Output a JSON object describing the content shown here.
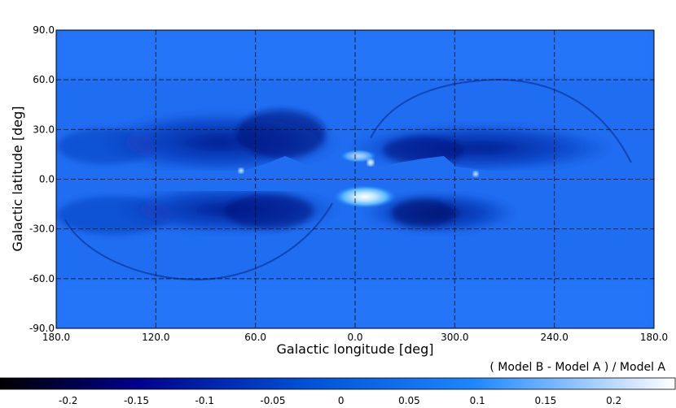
{
  "chart_data": {
    "type": "heatmap",
    "projection": "plate-carree",
    "xlabel": "Galactic longitude [deg]",
    "ylabel": "Galactic latitude [deg]",
    "x_ticks": [
      "180.0",
      "120.0",
      "60.0",
      "0.0",
      "300.0",
      "240.0",
      "180.0"
    ],
    "y_ticks": [
      "90.0",
      "60.0",
      "30.0",
      "0.0",
      "-30.0",
      "-60.0",
      "-90.0"
    ],
    "xlim_deg_plotted": [
      180,
      -180
    ],
    "ylim": [
      -90,
      90
    ],
    "grid": true,
    "colorbar": {
      "label": "( Model B - Model A ) / Model A",
      "ticks": [
        "-0.2",
        "-0.15",
        "-0.1",
        "-0.05",
        "0",
        "0.05",
        "0.1",
        "0.15",
        "0.2"
      ],
      "tick_values": [
        -0.2,
        -0.15,
        -0.1,
        -0.05,
        0,
        0.05,
        0.1,
        0.15,
        0.2
      ],
      "range": [
        -0.25,
        0.245
      ],
      "colormap": [
        "#000000",
        "#00008c",
        "#0050d6",
        "#1c86ff",
        "#ffffff"
      ]
    },
    "field": {
      "background_value": 0.0,
      "features": [
        {
          "name": "northern-mid-latitude-deficit",
          "lon_range": [
            -90,
            100
          ],
          "lat_range": [
            10,
            40
          ],
          "value": -0.12
        },
        {
          "name": "southern-mid-latitude-deficit",
          "lon_range": [
            -80,
            110
          ],
          "lat_range": [
            -40,
            -10
          ],
          "value": -0.12
        },
        {
          "name": "galactic-center-excess",
          "lon": -10,
          "lat": -8,
          "value": 0.2
        },
        {
          "name": "northern-loop-arc",
          "lon": -75,
          "lat": 60,
          "value": -0.1
        },
        {
          "name": "southern-loop-arc",
          "lon": 110,
          "lat": -60,
          "value": -0.1
        }
      ]
    }
  }
}
